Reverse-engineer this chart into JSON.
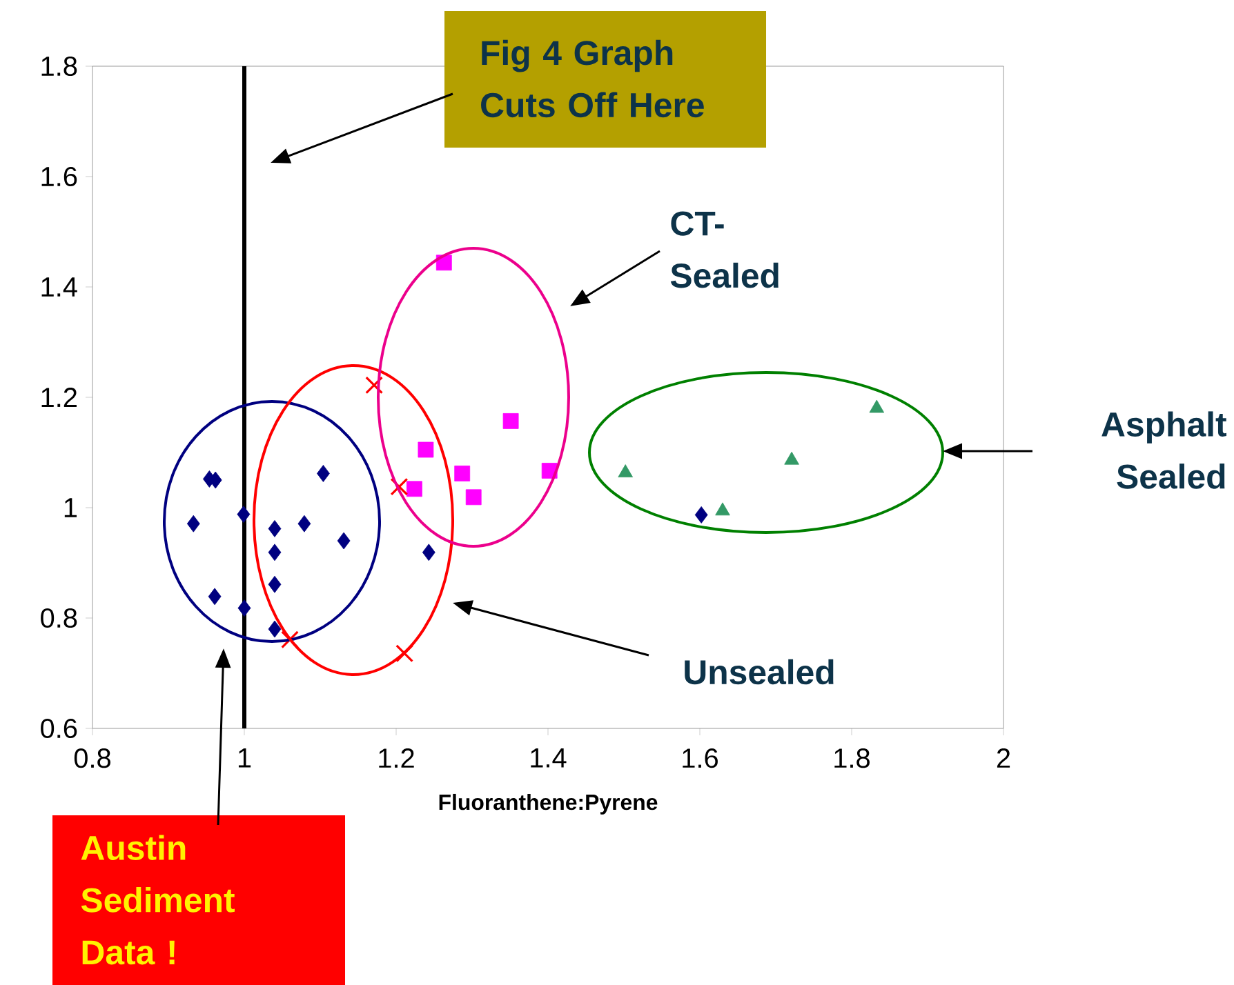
{
  "chart_data": {
    "type": "scatter",
    "xlabel": "Fluoranthene:Pyrene",
    "xlim": [
      0.8,
      2
    ],
    "ylim": [
      0.6,
      1.8
    ],
    "xticks": [
      0.8,
      {
        "value": 1,
        "label": "1"
      },
      1.2,
      1.4,
      1.6,
      1.8,
      {
        "value": 2,
        "label": "2"
      }
    ],
    "yticks": [
      0.6,
      0.8,
      {
        "value": 1,
        "label": "1"
      },
      1.2,
      1.4,
      1.6,
      1.8
    ],
    "grid": false,
    "series": [
      {
        "color": "#000080",
        "marker": "diamond",
        "x": [
          0.954,
          0.962,
          1.104,
          0.933,
          0.999,
          1.04,
          1.079,
          1.131,
          1.04,
          1.243,
          1.04,
          0.961,
          1.0,
          1.04,
          1.602
        ],
        "values": [
          1.052,
          1.05,
          1.062,
          0.971,
          0.988,
          0.962,
          0.971,
          0.94,
          0.919,
          0.919,
          0.861,
          0.839,
          0.818,
          0.78,
          0.987
        ]
      },
      {
        "color": "#ff00ff",
        "marker": "square",
        "x": [
          1.263,
          1.351,
          1.239,
          1.287,
          1.402,
          1.224,
          1.302
        ],
        "values": [
          1.444,
          1.157,
          1.105,
          1.062,
          1.067,
          1.034,
          1.019
        ]
      },
      {
        "color": "#ff0000",
        "marker": "cross",
        "x": [
          1.171,
          1.204,
          1.06,
          1.211
        ],
        "values": [
          1.222,
          1.038,
          0.761,
          0.736
        ]
      },
      {
        "color": "#339966",
        "marker": "triangle",
        "x": [
          1.502,
          1.63,
          1.721,
          1.833
        ],
        "values": [
          1.063,
          0.994,
          1.086,
          1.18
        ]
      }
    ],
    "ref_lines": [
      {
        "axis": "x",
        "value": 1,
        "color": "#000000"
      }
    ],
    "annotations": [
      "Fig 4 Graph Cuts Off Here",
      "CT-Sealed",
      "Unsealed",
      "Asphalt Sealed",
      "Austin Sediment Data !"
    ]
  }
}
